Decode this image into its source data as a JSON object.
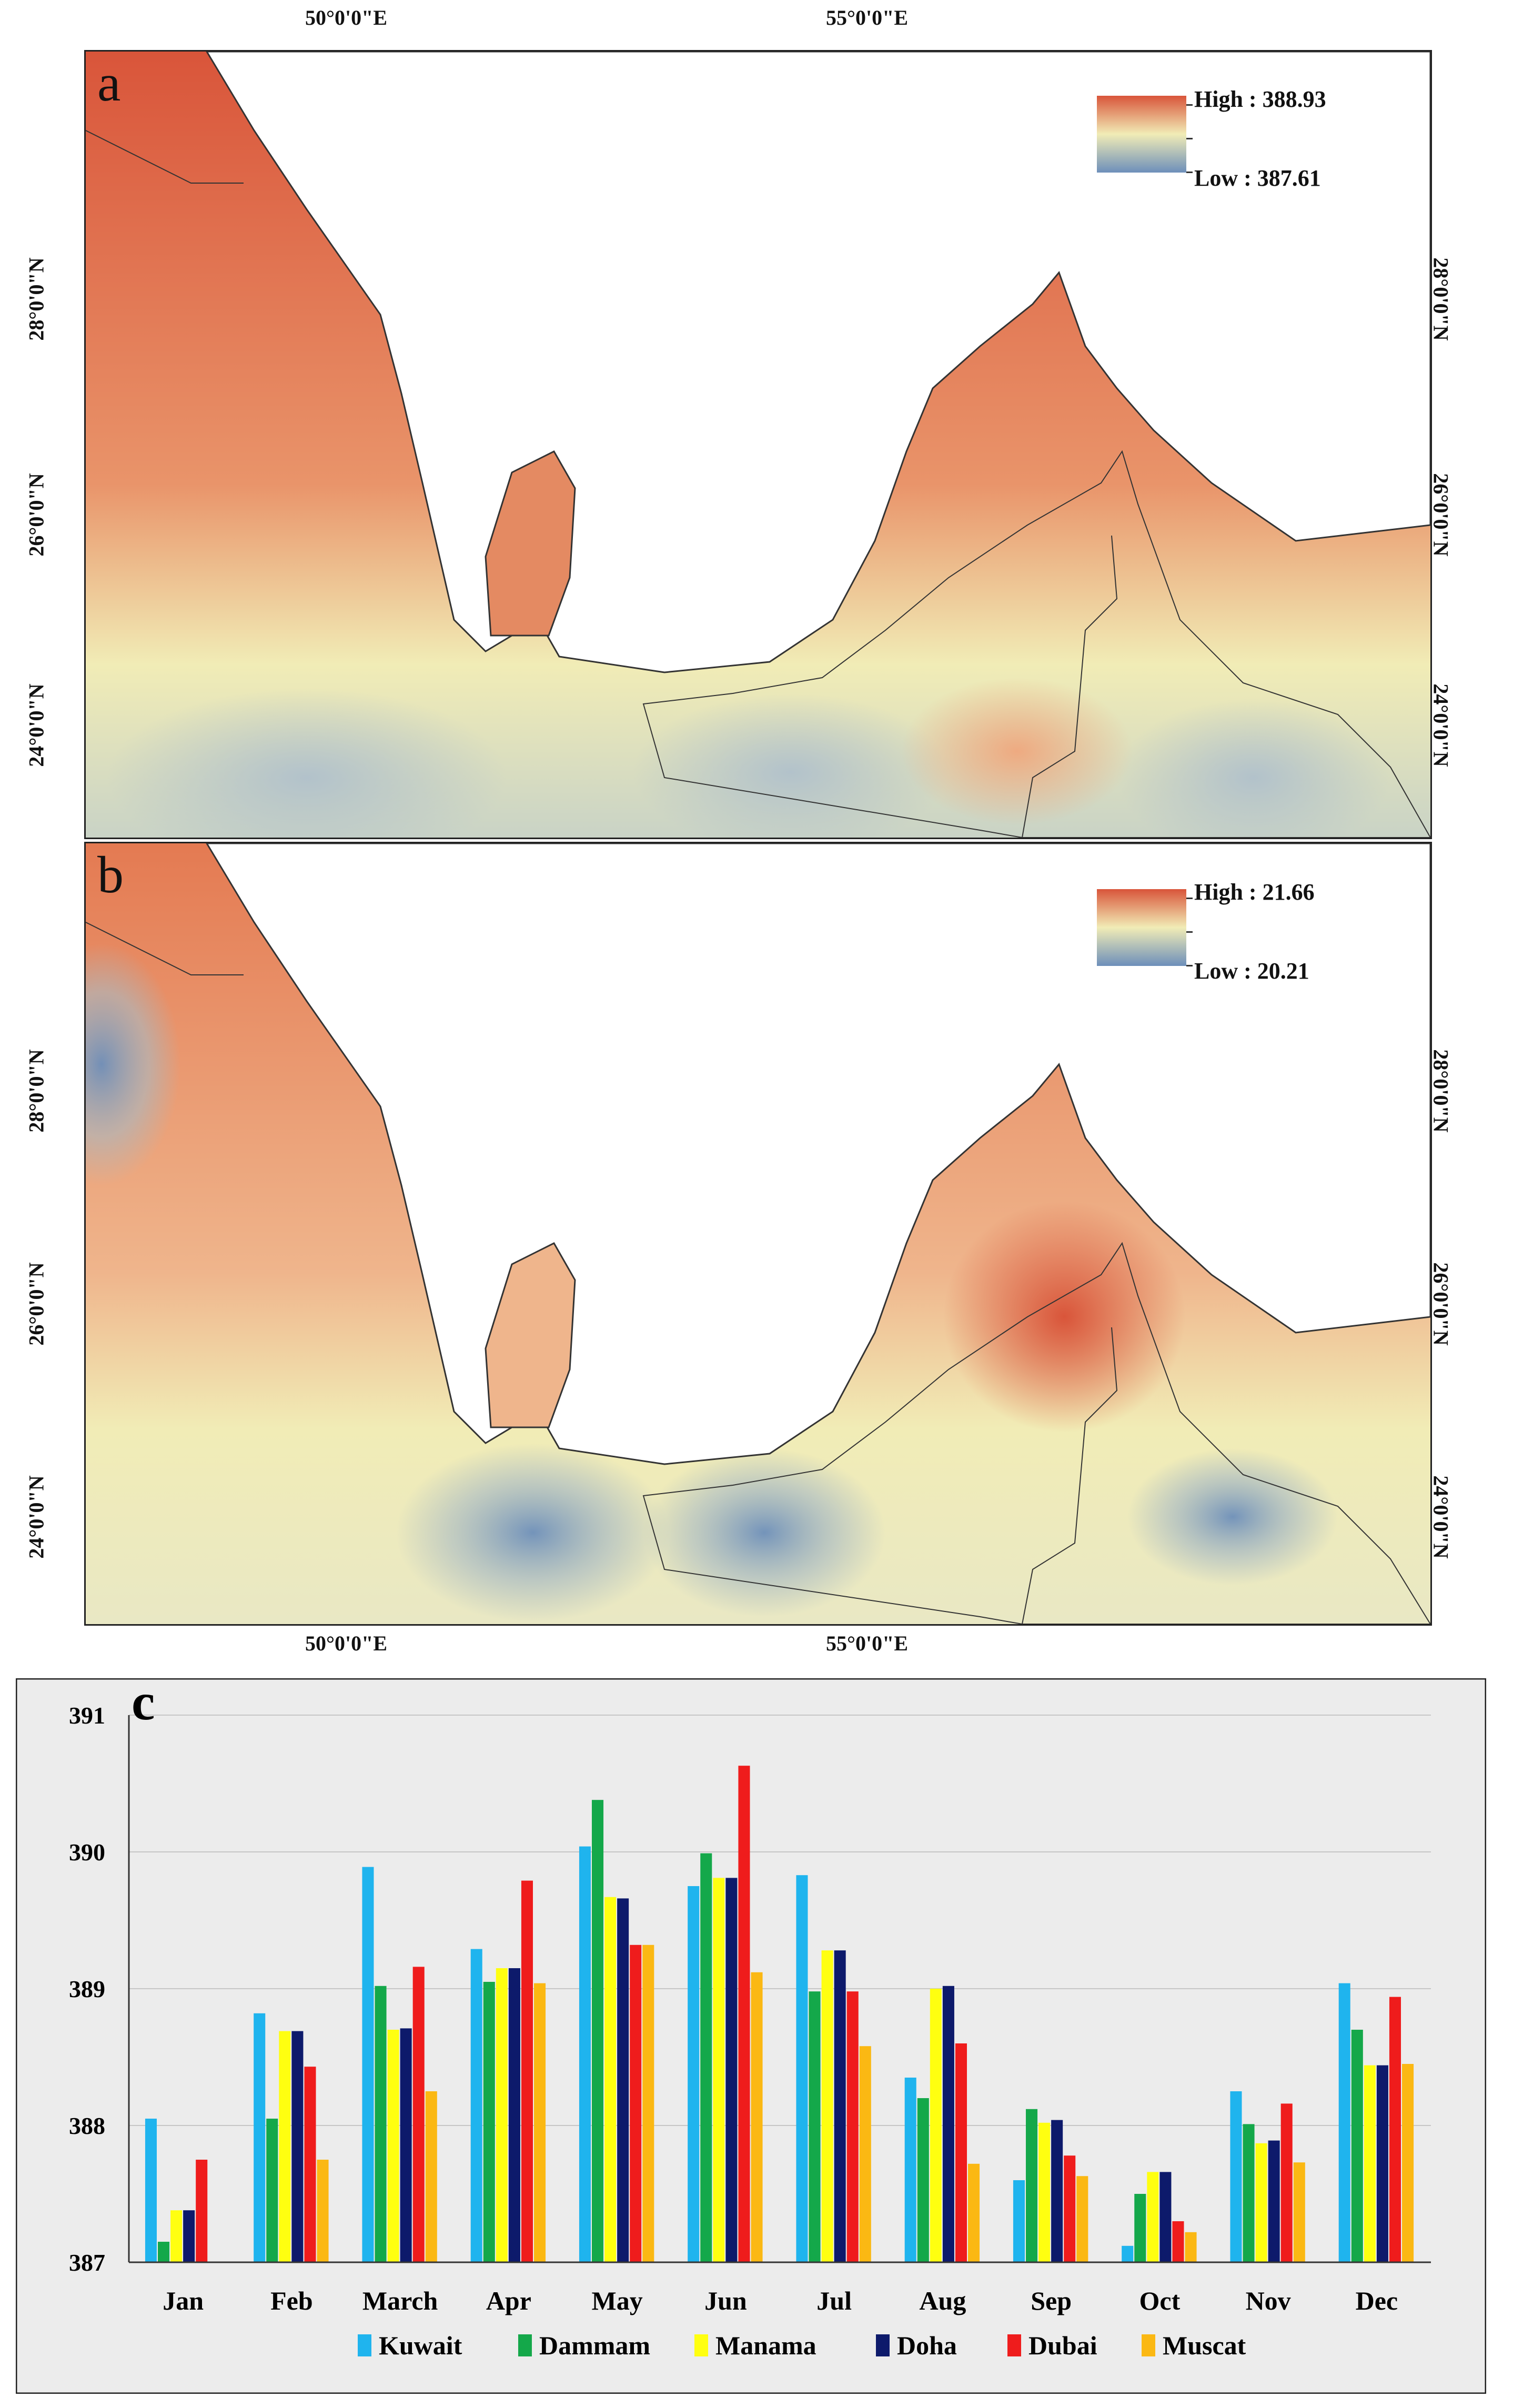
{
  "map_a": {
    "panel_label": "a",
    "legend_high": "High : 388.93",
    "legend_low": "Low : 387.61",
    "lon_labels": [
      "50°0'0\"E",
      "55°0'0\"E"
    ],
    "lat_labels": [
      "28°0'0\"N",
      "26°0'0\"N",
      "24°0'0\"N"
    ]
  },
  "map_b": {
    "panel_label": "b",
    "legend_high": "High : 21.66",
    "legend_low": "Low : 20.21",
    "lon_labels": [
      "50°0'0\"E",
      "55°0'0\"E"
    ],
    "lat_labels": [
      "28°0'0\"N",
      "26°0'0\"N",
      "24°0'0\"N"
    ]
  },
  "colors": {
    "high": "#d9553a",
    "mid": "#f1ecb6",
    "low": "#6d8fba",
    "land": "#ffffff"
  },
  "chart_data": {
    "type": "bar",
    "panel_label": "c",
    "title": "",
    "xlabel": "",
    "ylabel": "",
    "ylim": [
      387,
      391
    ],
    "yticks": [
      387,
      388,
      389,
      390,
      391
    ],
    "categories": [
      "Jan",
      "Feb",
      "March",
      "Apr",
      "May",
      "Jun",
      "Jul",
      "Aug",
      "Sep",
      "Oct",
      "Nov",
      "Dec"
    ],
    "legend_position": "bottom",
    "series": [
      {
        "name": "Kuwait",
        "color": "#1fb4ee",
        "values": [
          388.05,
          388.82,
          389.89,
          389.29,
          390.04,
          389.75,
          389.83,
          388.35,
          387.6,
          387.12,
          388.25,
          389.04
        ]
      },
      {
        "name": "Dammam",
        "color": "#14a84a",
        "values": [
          387.15,
          388.05,
          389.02,
          389.05,
          390.38,
          389.99,
          388.98,
          388.2,
          388.12,
          387.5,
          388.01,
          388.7
        ]
      },
      {
        "name": "Manama",
        "color": "#ffff10",
        "values": [
          387.38,
          388.69,
          388.7,
          389.15,
          389.67,
          389.81,
          389.28,
          389.0,
          388.02,
          387.66,
          387.87,
          388.44
        ]
      },
      {
        "name": "Doha",
        "color": "#0d1a6b",
        "values": [
          387.38,
          388.69,
          388.71,
          389.15,
          389.66,
          389.81,
          389.28,
          389.02,
          388.04,
          387.66,
          387.89,
          388.44
        ]
      },
      {
        "name": "Dubai",
        "color": "#ef1c1c",
        "values": [
          387.75,
          388.43,
          389.16,
          389.79,
          389.32,
          390.63,
          388.98,
          388.6,
          387.78,
          387.3,
          388.16,
          388.94
        ]
      },
      {
        "name": "Muscat",
        "color": "#fbb813",
        "values": [
          null,
          387.75,
          388.25,
          389.04,
          389.32,
          389.12,
          388.58,
          387.72,
          387.63,
          387.22,
          387.73,
          388.45
        ]
      }
    ]
  }
}
